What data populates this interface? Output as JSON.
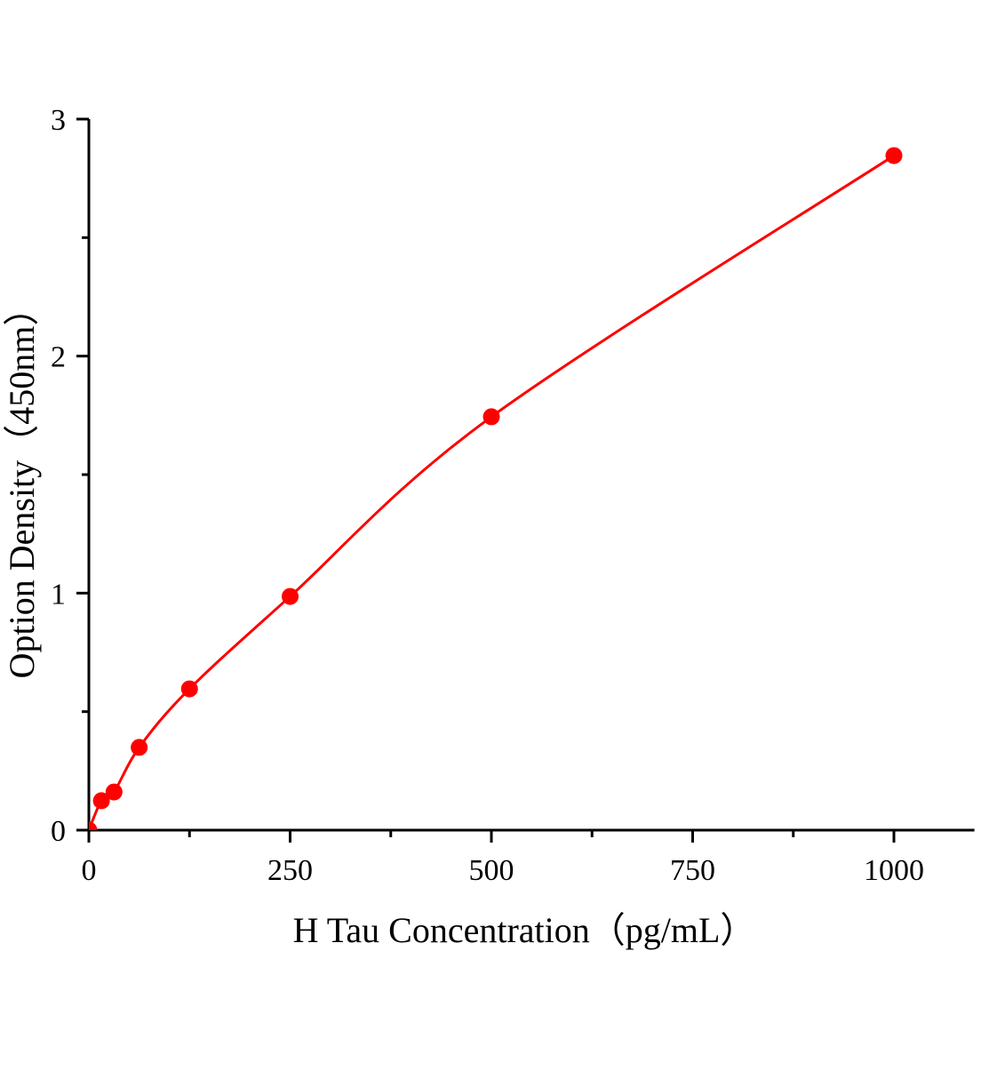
{
  "chart_data": {
    "type": "line",
    "title": "",
    "xlabel": "H Tau Concentration（pg/mL）",
    "ylabel": "Option Density（450nm）",
    "xlim": [
      0,
      1100
    ],
    "ylim": [
      0,
      3
    ],
    "x_ticks": [
      "0",
      "250",
      "500",
      "750",
      "1000"
    ],
    "y_ticks": [
      "0",
      "1",
      "2",
      "3"
    ],
    "grid": false,
    "color": "#ff0000",
    "points": [
      {
        "x": 0,
        "y": 0
      },
      {
        "x": 15.6,
        "y": 0.124
      },
      {
        "x": 31.25,
        "y": 0.161
      },
      {
        "x": 62.5,
        "y": 0.349
      },
      {
        "x": 125,
        "y": 0.596
      },
      {
        "x": 250,
        "y": 0.986
      },
      {
        "x": 500,
        "y": 1.744
      },
      {
        "x": 1000,
        "y": 2.846
      }
    ]
  }
}
